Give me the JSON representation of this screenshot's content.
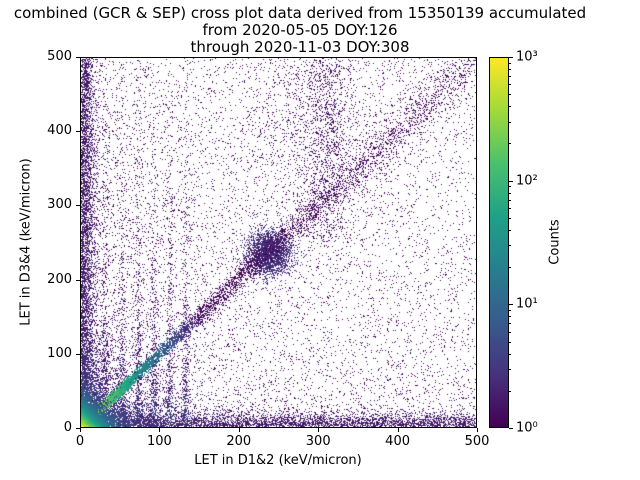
{
  "chart_data": {
    "type": "heatmap",
    "plot_style": "2D histogram cross plot, viridis colormap, logarithmic color scale",
    "title": "combined (GCR & SEP) cross plot data derived from 15350139 accumulated\nfrom 2020-05-05 DOY:126\nthrough 2020-11-03 DOY:308",
    "title_lines": [
      "combined (GCR & SEP) cross plot data derived from 15350139 accumulated",
      "from 2020-05-05 DOY:126",
      "through 2020-11-03 DOY:308"
    ],
    "xlabel": "LET in D1&2 (keV/micron)",
    "ylabel": "LET in D3&4 (keV/micron)",
    "xlim": [
      0,
      500
    ],
    "ylim": [
      0,
      500
    ],
    "x_ticks": [
      0,
      100,
      200,
      300,
      400,
      500
    ],
    "y_ticks": [
      0,
      100,
      200,
      300,
      400,
      500
    ],
    "grid": false,
    "legend": null,
    "total_accumulated_events": 15350139,
    "date_start": "2020-05-05",
    "doy_start": 126,
    "date_end": "2020-11-03",
    "doy_end": 308,
    "colorbar": {
      "label": "Counts",
      "scale": "log",
      "range": [
        1,
        1000
      ],
      "tick_labels": [
        "10⁰",
        "10¹",
        "10²",
        "10³"
      ],
      "tick_exponents": [
        0,
        1,
        2,
        3
      ],
      "colormap": "viridis"
    },
    "colormap_stops": [
      "#440154",
      "#46327e",
      "#365c8d",
      "#277f8e",
      "#1fa187",
      "#4ac16d",
      "#a0da39",
      "#fde725"
    ],
    "density_features": [
      {
        "name": "sparse-uniform-background",
        "kind": "uniform",
        "n": 2600,
        "level": 0.0
      },
      {
        "name": "low-LET-biased-background",
        "kind": "biased",
        "n": 6500,
        "xpow": 1.6,
        "ypow": 1.4,
        "level": 0.0
      },
      {
        "name": "origin-halo",
        "kind": "origin",
        "n": 2600,
        "scale": 42
      },
      {
        "name": "upper-mid-cloud",
        "kind": "cloud",
        "n": 1300,
        "x": 295,
        "sx": 55,
        "y": 420,
        "sy": 90,
        "ymin": 260,
        "level": 0.02
      },
      {
        "name": "upper-vertical-band",
        "kind": "vstripe",
        "n": 800,
        "x": 312,
        "sigma": 14,
        "ymin": 250,
        "ymax": 500,
        "level": 0.03
      },
      {
        "name": "low-x-vertical-streaks",
        "kind": "streaks",
        "n": 2300,
        "xs": [
          30,
          52,
          72,
          92,
          112,
          132
        ],
        "sigma": 2.5,
        "yscale": 140,
        "level": 0.04
      },
      {
        "name": "mid-diagonal-cluster",
        "kind": "blob",
        "n": 2300,
        "x": 238,
        "y": 236,
        "sigma": 15,
        "level": 0.1
      },
      {
        "name": "bottom-edge-band",
        "kind": "hband",
        "n": 3600,
        "sigma": 9,
        "level": 0.06
      },
      {
        "name": "left-edge-band",
        "kind": "vband",
        "n": 3500,
        "sigma": 9,
        "level": 0.06
      },
      {
        "name": "identity-diagonal",
        "kind": "diagonal",
        "n": 6500,
        "spread": 3.5,
        "tpow": 2.2,
        "fade": 170
      },
      {
        "name": "origin-hotspot",
        "kind": "origin",
        "n": 5200,
        "scale": 14
      }
    ]
  }
}
